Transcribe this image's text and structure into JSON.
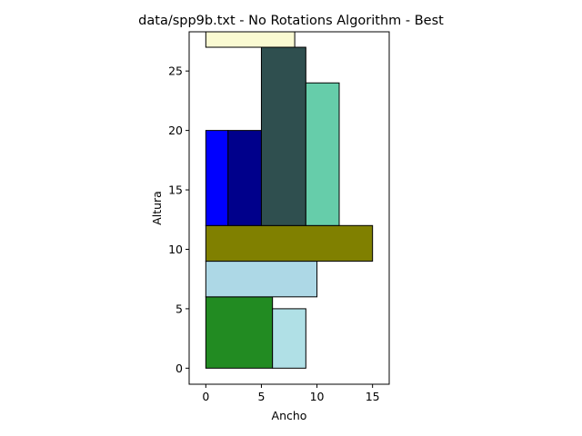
{
  "chart_data": {
    "type": "bar",
    "title": "data/spp9b.txt - No Rotations Algorithm - Best",
    "xlabel": "Ancho",
    "ylabel": "Altura",
    "xlim": [
      -1.5,
      16.5
    ],
    "ylim": [
      -1.35,
      28.3
    ],
    "xticks": [
      0,
      5,
      10,
      15
    ],
    "yticks": [
      0,
      5,
      10,
      15,
      20,
      25
    ],
    "grid": false,
    "legend": "none",
    "rectangles": [
      {
        "x": 0,
        "y": 0,
        "w": 6,
        "h": 6,
        "color": "#228b22"
      },
      {
        "x": 6,
        "y": 0,
        "w": 3,
        "h": 5,
        "color": "#b0e0e6"
      },
      {
        "x": 0,
        "y": 6,
        "w": 10,
        "h": 3,
        "color": "#add8e6"
      },
      {
        "x": 0,
        "y": 9,
        "w": 15,
        "h": 3,
        "color": "#808000"
      },
      {
        "x": 0,
        "y": 12,
        "w": 2,
        "h": 8,
        "color": "#0000ff"
      },
      {
        "x": 2,
        "y": 12,
        "w": 3,
        "h": 8,
        "color": "#00008b"
      },
      {
        "x": 5,
        "y": 12,
        "w": 4,
        "h": 15,
        "color": "#2f4f4f"
      },
      {
        "x": 9,
        "y": 12,
        "w": 3,
        "h": 12,
        "color": "#66cdaa"
      },
      {
        "x": 0,
        "y": 27,
        "w": 8,
        "h": 2,
        "color": "#fafad2"
      }
    ]
  }
}
